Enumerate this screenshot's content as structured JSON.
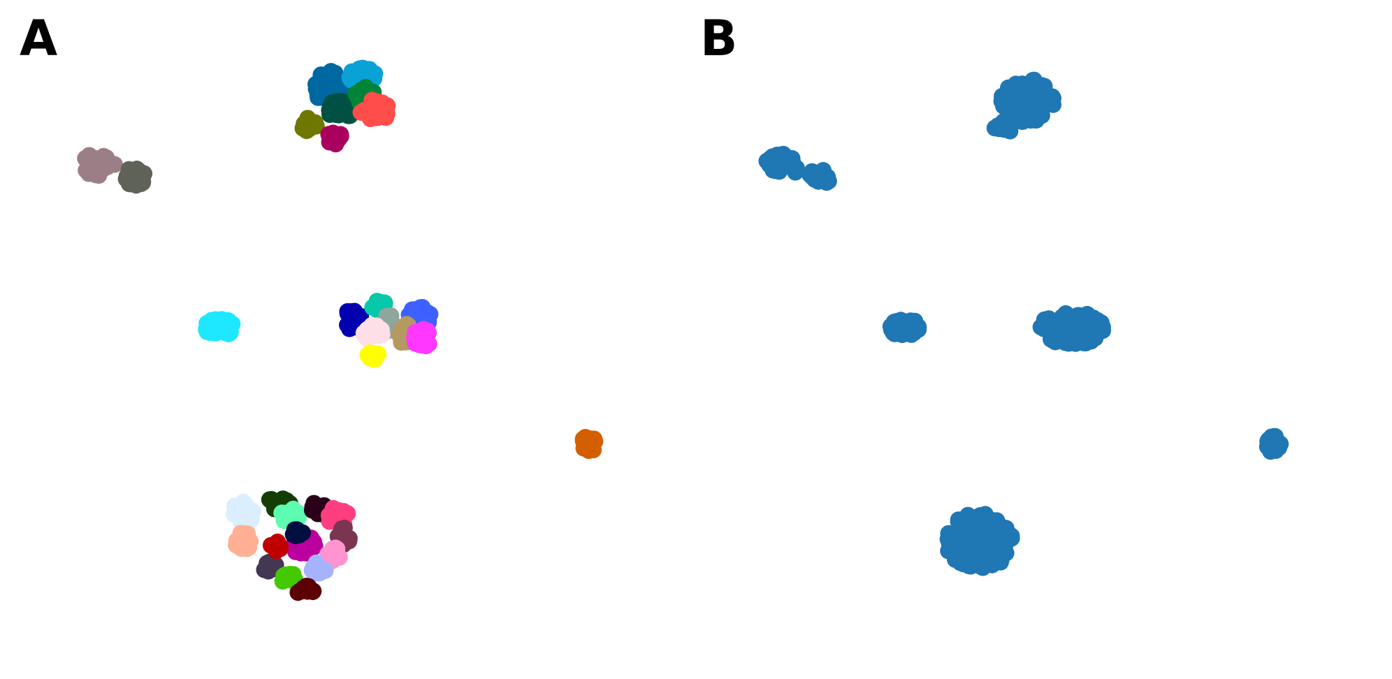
{
  "panels": [
    {
      "label": "A"
    },
    {
      "label": "B"
    }
  ],
  "chart_data": [
    {
      "type": "scatter",
      "panel": "A",
      "series": [
        {
          "color": "#9b7f86",
          "center": [
            0.93,
            5.18
          ],
          "spread": [
            0.28,
            0.16
          ],
          "n": 30
        },
        {
          "color": "#5f6357",
          "center": [
            1.55,
            5.02
          ],
          "spread": [
            0.18,
            0.12
          ],
          "n": 24
        },
        {
          "color": "#0068a0",
          "center": [
            4.78,
            6.24
          ],
          "spread": [
            0.25,
            0.22
          ],
          "n": 30
        },
        {
          "color": "#0aa2d6",
          "center": [
            5.32,
            6.41
          ],
          "spread": [
            0.25,
            0.1
          ],
          "n": 22
        },
        {
          "color": "#005143",
          "center": [
            4.98,
            5.94
          ],
          "spread": [
            0.22,
            0.15
          ],
          "n": 26
        },
        {
          "color": "#008439",
          "center": [
            5.38,
            6.13
          ],
          "spread": [
            0.18,
            0.12
          ],
          "n": 18
        },
        {
          "color": "#ff4d4a",
          "center": [
            5.55,
            5.92
          ],
          "spread": [
            0.25,
            0.17
          ],
          "n": 28
        },
        {
          "color": "#6e7800",
          "center": [
            4.45,
            5.72
          ],
          "spread": [
            0.12,
            0.1
          ],
          "n": 16
        },
        {
          "color": "#a9005f",
          "center": [
            4.86,
            5.56
          ],
          "spread": [
            0.13,
            0.1
          ],
          "n": 16
        },
        {
          "color": "#1de8ff",
          "center": [
            2.95,
            2.97
          ],
          "spread": [
            0.25,
            0.12
          ],
          "n": 34
        },
        {
          "color": "#0400b0",
          "center": [
            5.16,
            3.07
          ],
          "spread": [
            0.16,
            0.13
          ],
          "n": 20
        },
        {
          "color": "#06c8aa",
          "center": [
            5.62,
            3.27
          ],
          "spread": [
            0.15,
            0.07
          ],
          "n": 14
        },
        {
          "color": "#8da79c",
          "center": [
            5.75,
            3.02
          ],
          "spread": [
            0.12,
            0.12
          ],
          "n": 12
        },
        {
          "color": "#3d61ff",
          "center": [
            6.28,
            3.12
          ],
          "spread": [
            0.22,
            0.14
          ],
          "n": 26
        },
        {
          "color": "#b49a60",
          "center": [
            6.05,
            2.88
          ],
          "spread": [
            0.16,
            0.14
          ],
          "n": 16
        },
        {
          "color": "#fddfe7",
          "center": [
            5.48,
            2.9
          ],
          "spread": [
            0.2,
            0.1
          ],
          "n": 20
        },
        {
          "color": "#ff37ff",
          "center": [
            6.33,
            2.82
          ],
          "spread": [
            0.16,
            0.12
          ],
          "n": 20
        },
        {
          "color": "#ffff00",
          "center": [
            5.52,
            2.58
          ],
          "spread": [
            0.1,
            0.05
          ],
          "n": 10
        },
        {
          "color": "#d35f00",
          "center": [
            9.1,
            1.38
          ],
          "spread": [
            0.12,
            0.12
          ],
          "n": 28
        },
        {
          "color": "#dbeefd",
          "center": [
            3.35,
            0.45
          ],
          "spread": [
            0.18,
            0.18
          ],
          "n": 22
        },
        {
          "color": "#153e04",
          "center": [
            3.95,
            0.58
          ],
          "spread": [
            0.2,
            0.1
          ],
          "n": 16
        },
        {
          "color": "#5dfcb0",
          "center": [
            4.12,
            0.4
          ],
          "spread": [
            0.16,
            0.12
          ],
          "n": 18
        },
        {
          "color": "#2a0018",
          "center": [
            4.62,
            0.5
          ],
          "spread": [
            0.13,
            0.1
          ],
          "n": 14
        },
        {
          "color": "#ff3e80",
          "center": [
            4.92,
            0.38
          ],
          "spread": [
            0.18,
            0.14
          ],
          "n": 20
        },
        {
          "color": "#ffb094",
          "center": [
            3.35,
            0.05
          ],
          "spread": [
            0.14,
            0.12
          ],
          "n": 14
        },
        {
          "color": "#ba009e",
          "center": [
            4.35,
            0.0
          ],
          "spread": [
            0.22,
            0.12
          ],
          "n": 26
        },
        {
          "color": "#7a3650",
          "center": [
            5.02,
            0.12
          ],
          "spread": [
            0.13,
            0.12
          ],
          "n": 12
        },
        {
          "color": "#ff94d1",
          "center": [
            4.85,
            -0.12
          ],
          "spread": [
            0.14,
            0.1
          ],
          "n": 12
        },
        {
          "color": "#a5b3ff",
          "center": [
            4.6,
            -0.3
          ],
          "spread": [
            0.14,
            0.1
          ],
          "n": 12
        },
        {
          "color": "#433752",
          "center": [
            3.78,
            -0.28
          ],
          "spread": [
            0.12,
            0.08
          ],
          "n": 10
        },
        {
          "color": "#44c800",
          "center": [
            4.12,
            -0.45
          ],
          "spread": [
            0.14,
            0.08
          ],
          "n": 10
        },
        {
          "color": "#5d0004",
          "center": [
            4.38,
            -0.62
          ],
          "spread": [
            0.14,
            0.06
          ],
          "n": 10
        },
        {
          "color": "#c00000",
          "center": [
            3.88,
            -0.02
          ],
          "spread": [
            0.1,
            0.07
          ],
          "n": 8
        },
        {
          "color": "#000e40",
          "center": [
            4.25,
            0.18
          ],
          "spread": [
            0.1,
            0.08
          ],
          "n": 8
        }
      ]
    },
    {
      "type": "scatter",
      "panel": "B",
      "series": [
        {
          "color": "#1f77b4",
          "center": [
            0.93,
            5.18
          ],
          "spread": [
            0.28,
            0.16
          ],
          "n": 30
        },
        {
          "color": "#1f77b4",
          "center": [
            1.55,
            5.02
          ],
          "spread": [
            0.18,
            0.12
          ],
          "n": 24
        },
        {
          "color": "#1f77b4",
          "center": [
            5.02,
            6.05
          ],
          "spread": [
            0.45,
            0.3
          ],
          "n": 70
        },
        {
          "color": "#1f77b4",
          "center": [
            4.62,
            5.72
          ],
          "spread": [
            0.18,
            0.12
          ],
          "n": 14
        },
        {
          "color": "#1f77b4",
          "center": [
            2.95,
            2.97
          ],
          "spread": [
            0.25,
            0.12
          ],
          "n": 34
        },
        {
          "color": "#1f77b4",
          "center": [
            5.75,
            2.95
          ],
          "spread": [
            0.55,
            0.22
          ],
          "n": 110
        },
        {
          "color": "#1f77b4",
          "center": [
            9.1,
            1.38
          ],
          "spread": [
            0.12,
            0.12
          ],
          "n": 28
        },
        {
          "color": "#1f77b4",
          "center": [
            4.2,
            0.05
          ],
          "spread": [
            0.55,
            0.38
          ],
          "n": 170
        }
      ]
    }
  ]
}
